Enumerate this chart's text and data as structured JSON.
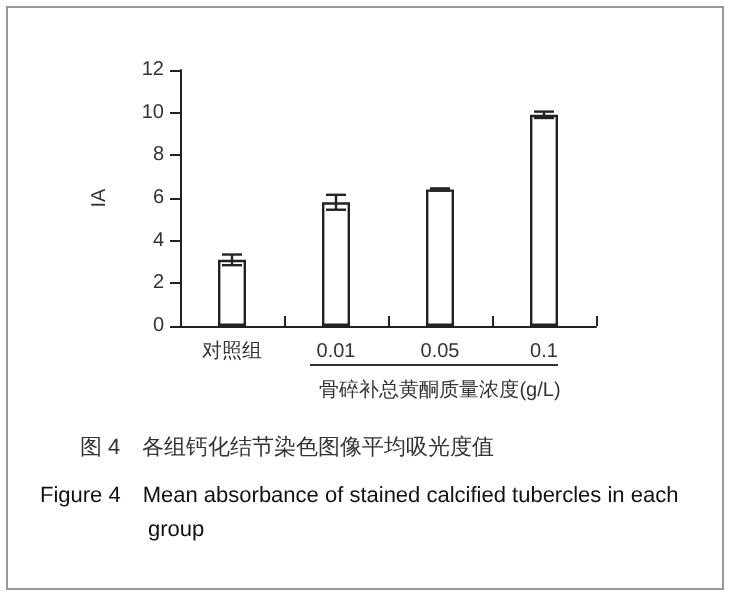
{
  "chart_data": {
    "type": "bar",
    "title": "图 4　各组钙化结节染色图像平均吸光度值",
    "subtitle": "Figure 4　Mean absorbance of stained calcified tubercles in each group",
    "xlabel": "骨碎补总黄酮质量浓度(g/L)",
    "ylabel": "IA",
    "categories": [
      "对照组",
      "0.01",
      "0.05",
      "0.1"
    ],
    "values": [
      3.1,
      5.8,
      6.4,
      9.9
    ],
    "errors": [
      0.25,
      0.35,
      0.05,
      0.15
    ],
    "color": "#ffffff",
    "ylim": [
      0,
      12
    ],
    "yticks": [
      0,
      2,
      4,
      6,
      8,
      10,
      12
    ],
    "grid": false
  }
}
